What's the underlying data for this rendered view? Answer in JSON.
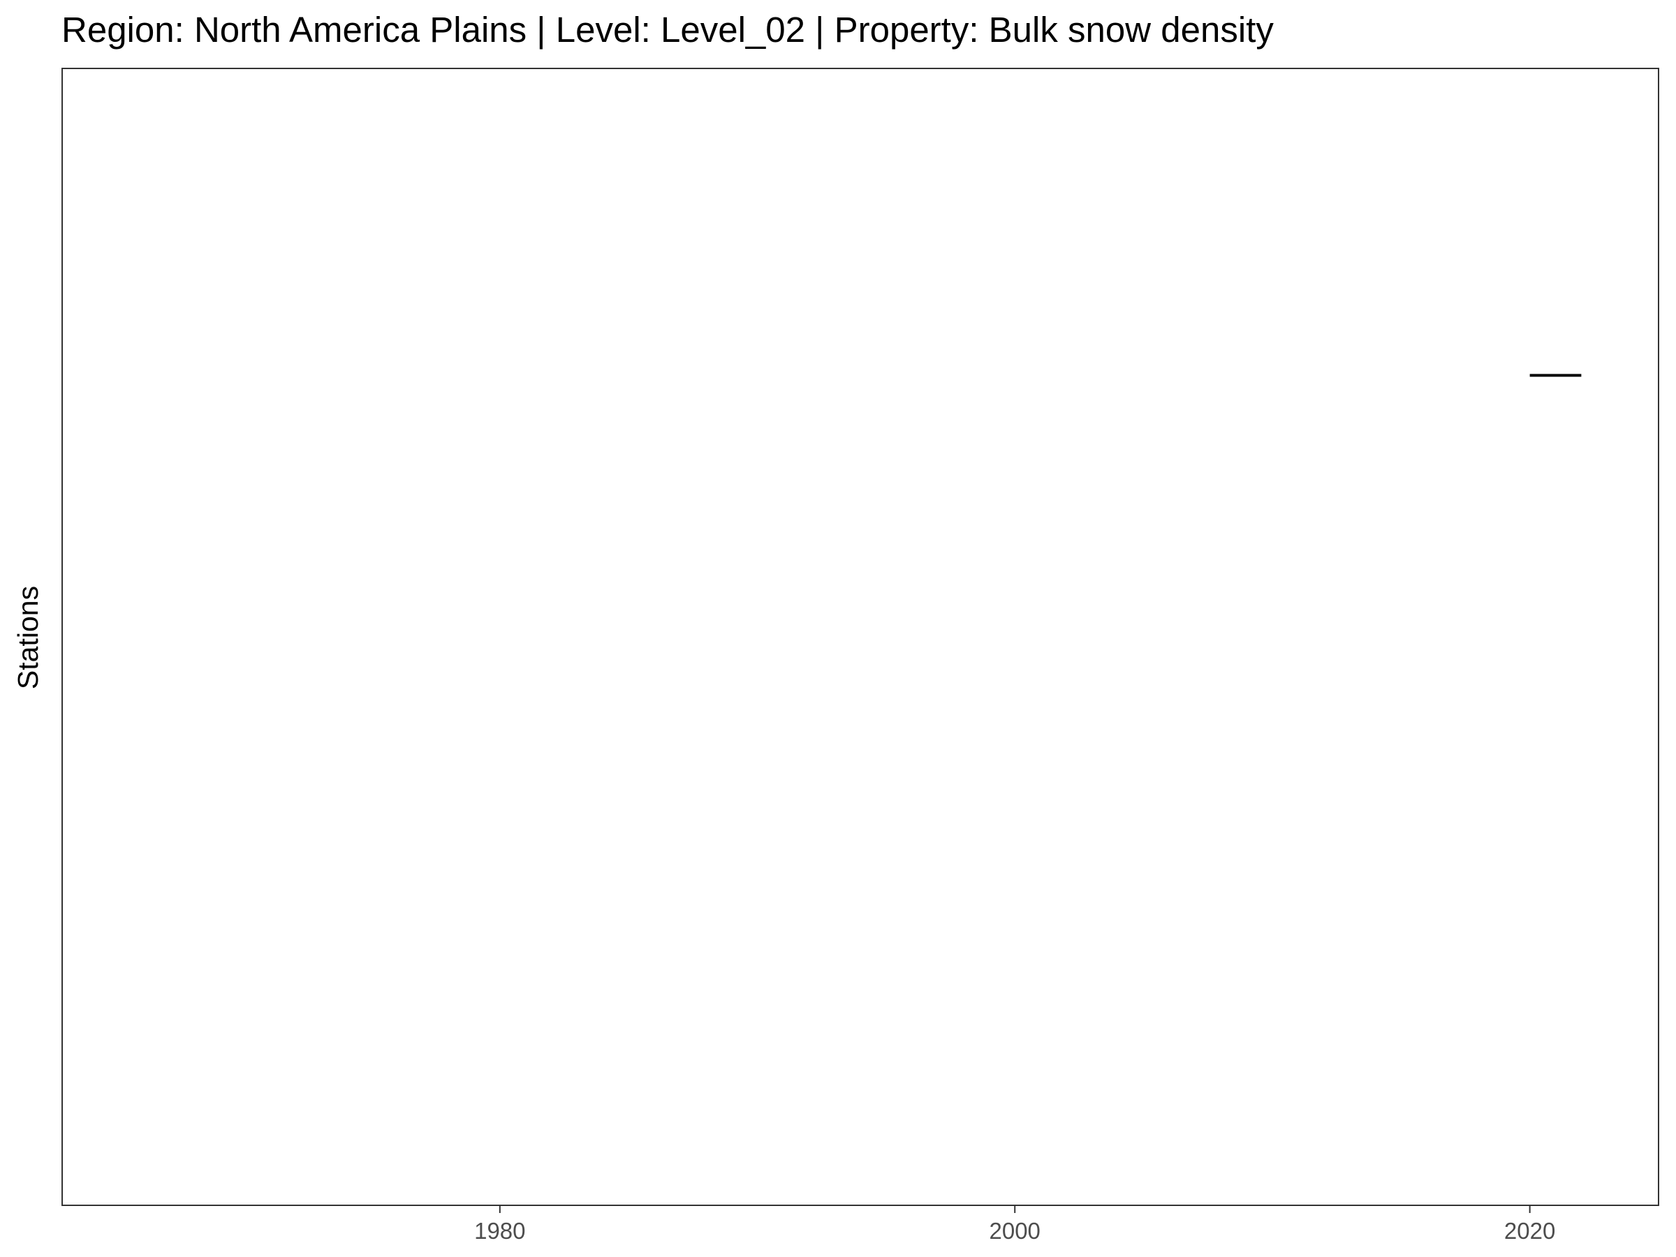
{
  "chart_data": {
    "type": "line",
    "title": "Region: North America Plains | Level: Level_02 | Property: Bulk snow density",
    "xlabel": "",
    "ylabel": "Stations",
    "xlim": [
      1963,
      2025
    ],
    "ylim": [
      0,
      1
    ],
    "x_ticks": [
      1980,
      2000,
      2020
    ],
    "x_tick_labels": [
      "1980",
      "2000",
      "2020"
    ],
    "y_ticks": [],
    "grid": false,
    "legend": "none",
    "series": [
      {
        "segments": [
          {
            "x_start": 2020,
            "x_end": 2022,
            "y": 0.73
          }
        ]
      }
    ],
    "colors": {
      "segment": "#000000",
      "panel_border": "#333333",
      "tick_label": "#4d4d4d",
      "background": "#ffffff"
    }
  }
}
